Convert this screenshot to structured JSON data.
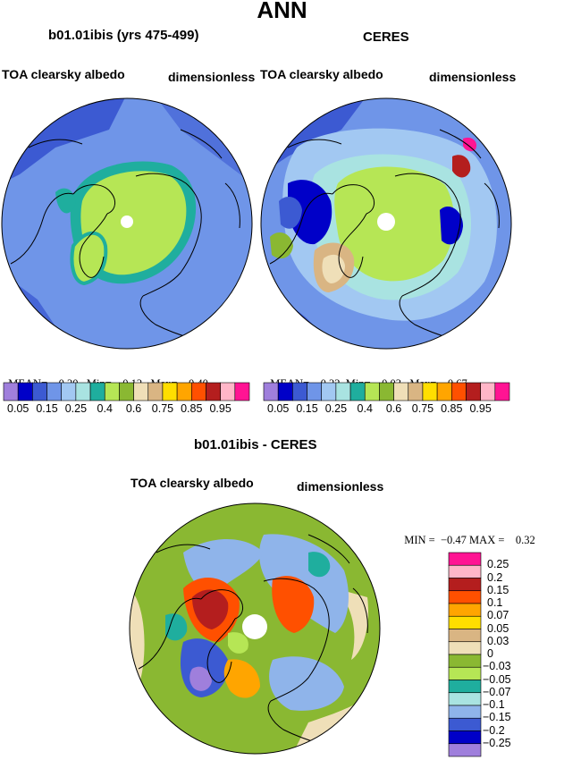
{
  "page_title": "ANN",
  "panels": [
    {
      "subtitle": "b01.01ibis (yrs 475-499)",
      "left_label": "TOA clearsky albedo",
      "right_label": "dimensionless",
      "stats": {
        "mean_label": "MEAN=",
        "mean": "0.20",
        "min_label": "Min=",
        "min": "0.12",
        "max_label": "Max=",
        "max": "0.40"
      }
    },
    {
      "subtitle": "CERES",
      "left_label": "TOA clearsky albedo",
      "right_label": "dimensionless",
      "stats": {
        "mean_label": "MEAN=",
        "mean": "0.22",
        "min_label": "Min=",
        "min": "0.03",
        "max_label": "Max=",
        "max": "0.67"
      }
    }
  ],
  "colorbar_top": {
    "colors": [
      "#9f7fdc",
      "#0000c8",
      "#3c5ad2",
      "#6f95e8",
      "#a2c8f2",
      "#a9e3e1",
      "#1fae9e",
      "#b6e655",
      "#8ab832",
      "#efdfb8",
      "#d9b583",
      "#ffde00",
      "#ffa500",
      "#ff5000",
      "#b41e1e",
      "#ffb6c8",
      "#ff1493"
    ],
    "tick_labels": [
      "0.05",
      "0.15",
      "0.25",
      "0.4",
      "0.6",
      "0.75",
      "0.85",
      "0.95"
    ]
  },
  "diff": {
    "title": "b01.01ibis - CERES",
    "left_label": "TOA clearsky albedo",
    "right_label": "dimensionless",
    "min_label": "MIN =",
    "min": "−0.47",
    "max_label": "MAX =",
    "max": "0.32",
    "colorbar": {
      "colors": [
        "#ff1493",
        "#ffb6c8",
        "#b41e1e",
        "#ff5000",
        "#ffa500",
        "#ffde00",
        "#d9b583",
        "#efdfb8",
        "#8ab832",
        "#b6e655",
        "#1fae9e",
        "#a9e3e1",
        "#8fb4ea",
        "#3c5ad2",
        "#0000c8",
        "#9f7fdc"
      ],
      "tick_labels": [
        "0.25",
        "0.2",
        "0.15",
        "0.1",
        "0.07",
        "0.05",
        "0.03",
        "0",
        "−0.03",
        "−0.05",
        "−0.07",
        "−0.1",
        "−0.15",
        "−0.2",
        "−0.25"
      ]
    }
  },
  "palette": {
    "ocean_left": "#6f95e8",
    "ocean_deep": "#3c5ad2",
    "ice": "#b6e655",
    "ice_edge": "#1fae9e",
    "ceres_light": "#a2c8f2",
    "diff_green": "#8ab832",
    "diff_tan": "#efdfb8",
    "diff_red": "#ff5000"
  }
}
